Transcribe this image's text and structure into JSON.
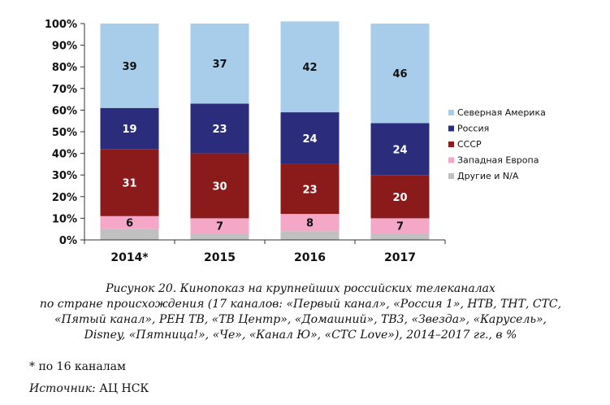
{
  "chart_data": {
    "type": "bar",
    "stacked": true,
    "percent": true,
    "categories": [
      "2014*",
      "2015",
      "2016",
      "2017"
    ],
    "series": [
      {
        "name": "Другие и N/A",
        "color": "#c0c0c0",
        "values": [
          5,
          3,
          4,
          3
        ]
      },
      {
        "name": "Западная Европа",
        "color": "#f4a7c6",
        "values": [
          6,
          7,
          8,
          7
        ]
      },
      {
        "name": "СССР",
        "color": "#8b1a1a",
        "values": [
          31,
          30,
          23,
          20
        ]
      },
      {
        "name": "Россия",
        "color": "#2b2d7c",
        "values": [
          19,
          23,
          24,
          24
        ]
      },
      {
        "name": "Северная Америка",
        "color": "#a8cdea",
        "values": [
          39,
          37,
          42,
          46
        ]
      }
    ],
    "labeled_series": [
      "Западная Европа",
      "СССР",
      "Россия",
      "Северная Америка"
    ],
    "yticks": [
      "0%",
      "10%",
      "20%",
      "30%",
      "40%",
      "50%",
      "60%",
      "70%",
      "80%",
      "90%",
      "100%"
    ],
    "ylim": [
      0,
      100
    ],
    "legend_position": "right",
    "legend_order": [
      "Северная Америка",
      "Россия",
      "СССР",
      "Западная Европа",
      "Другие и N/A"
    ]
  },
  "caption": {
    "line1": "Рисунок 20. Кинопоказ на крупнейших российских телеканалах",
    "line2": "по стране происхождения (17 каналов: «Первый канал», «Россия 1», НТВ, ТНТ, СТС,",
    "line3": "«Пятый канал», РЕН ТВ, «ТВ Центр», «Домашний», ТВ3, «Звезда», «Карусель»,",
    "line4": "Disney, «Пятница!», «Че», «Канал Ю», «СТС Love»), 2014–2017 гг., в %"
  },
  "footnote": "* по 16 каналам",
  "source_label": "Источник:",
  "source_value": "АЦ НСК"
}
